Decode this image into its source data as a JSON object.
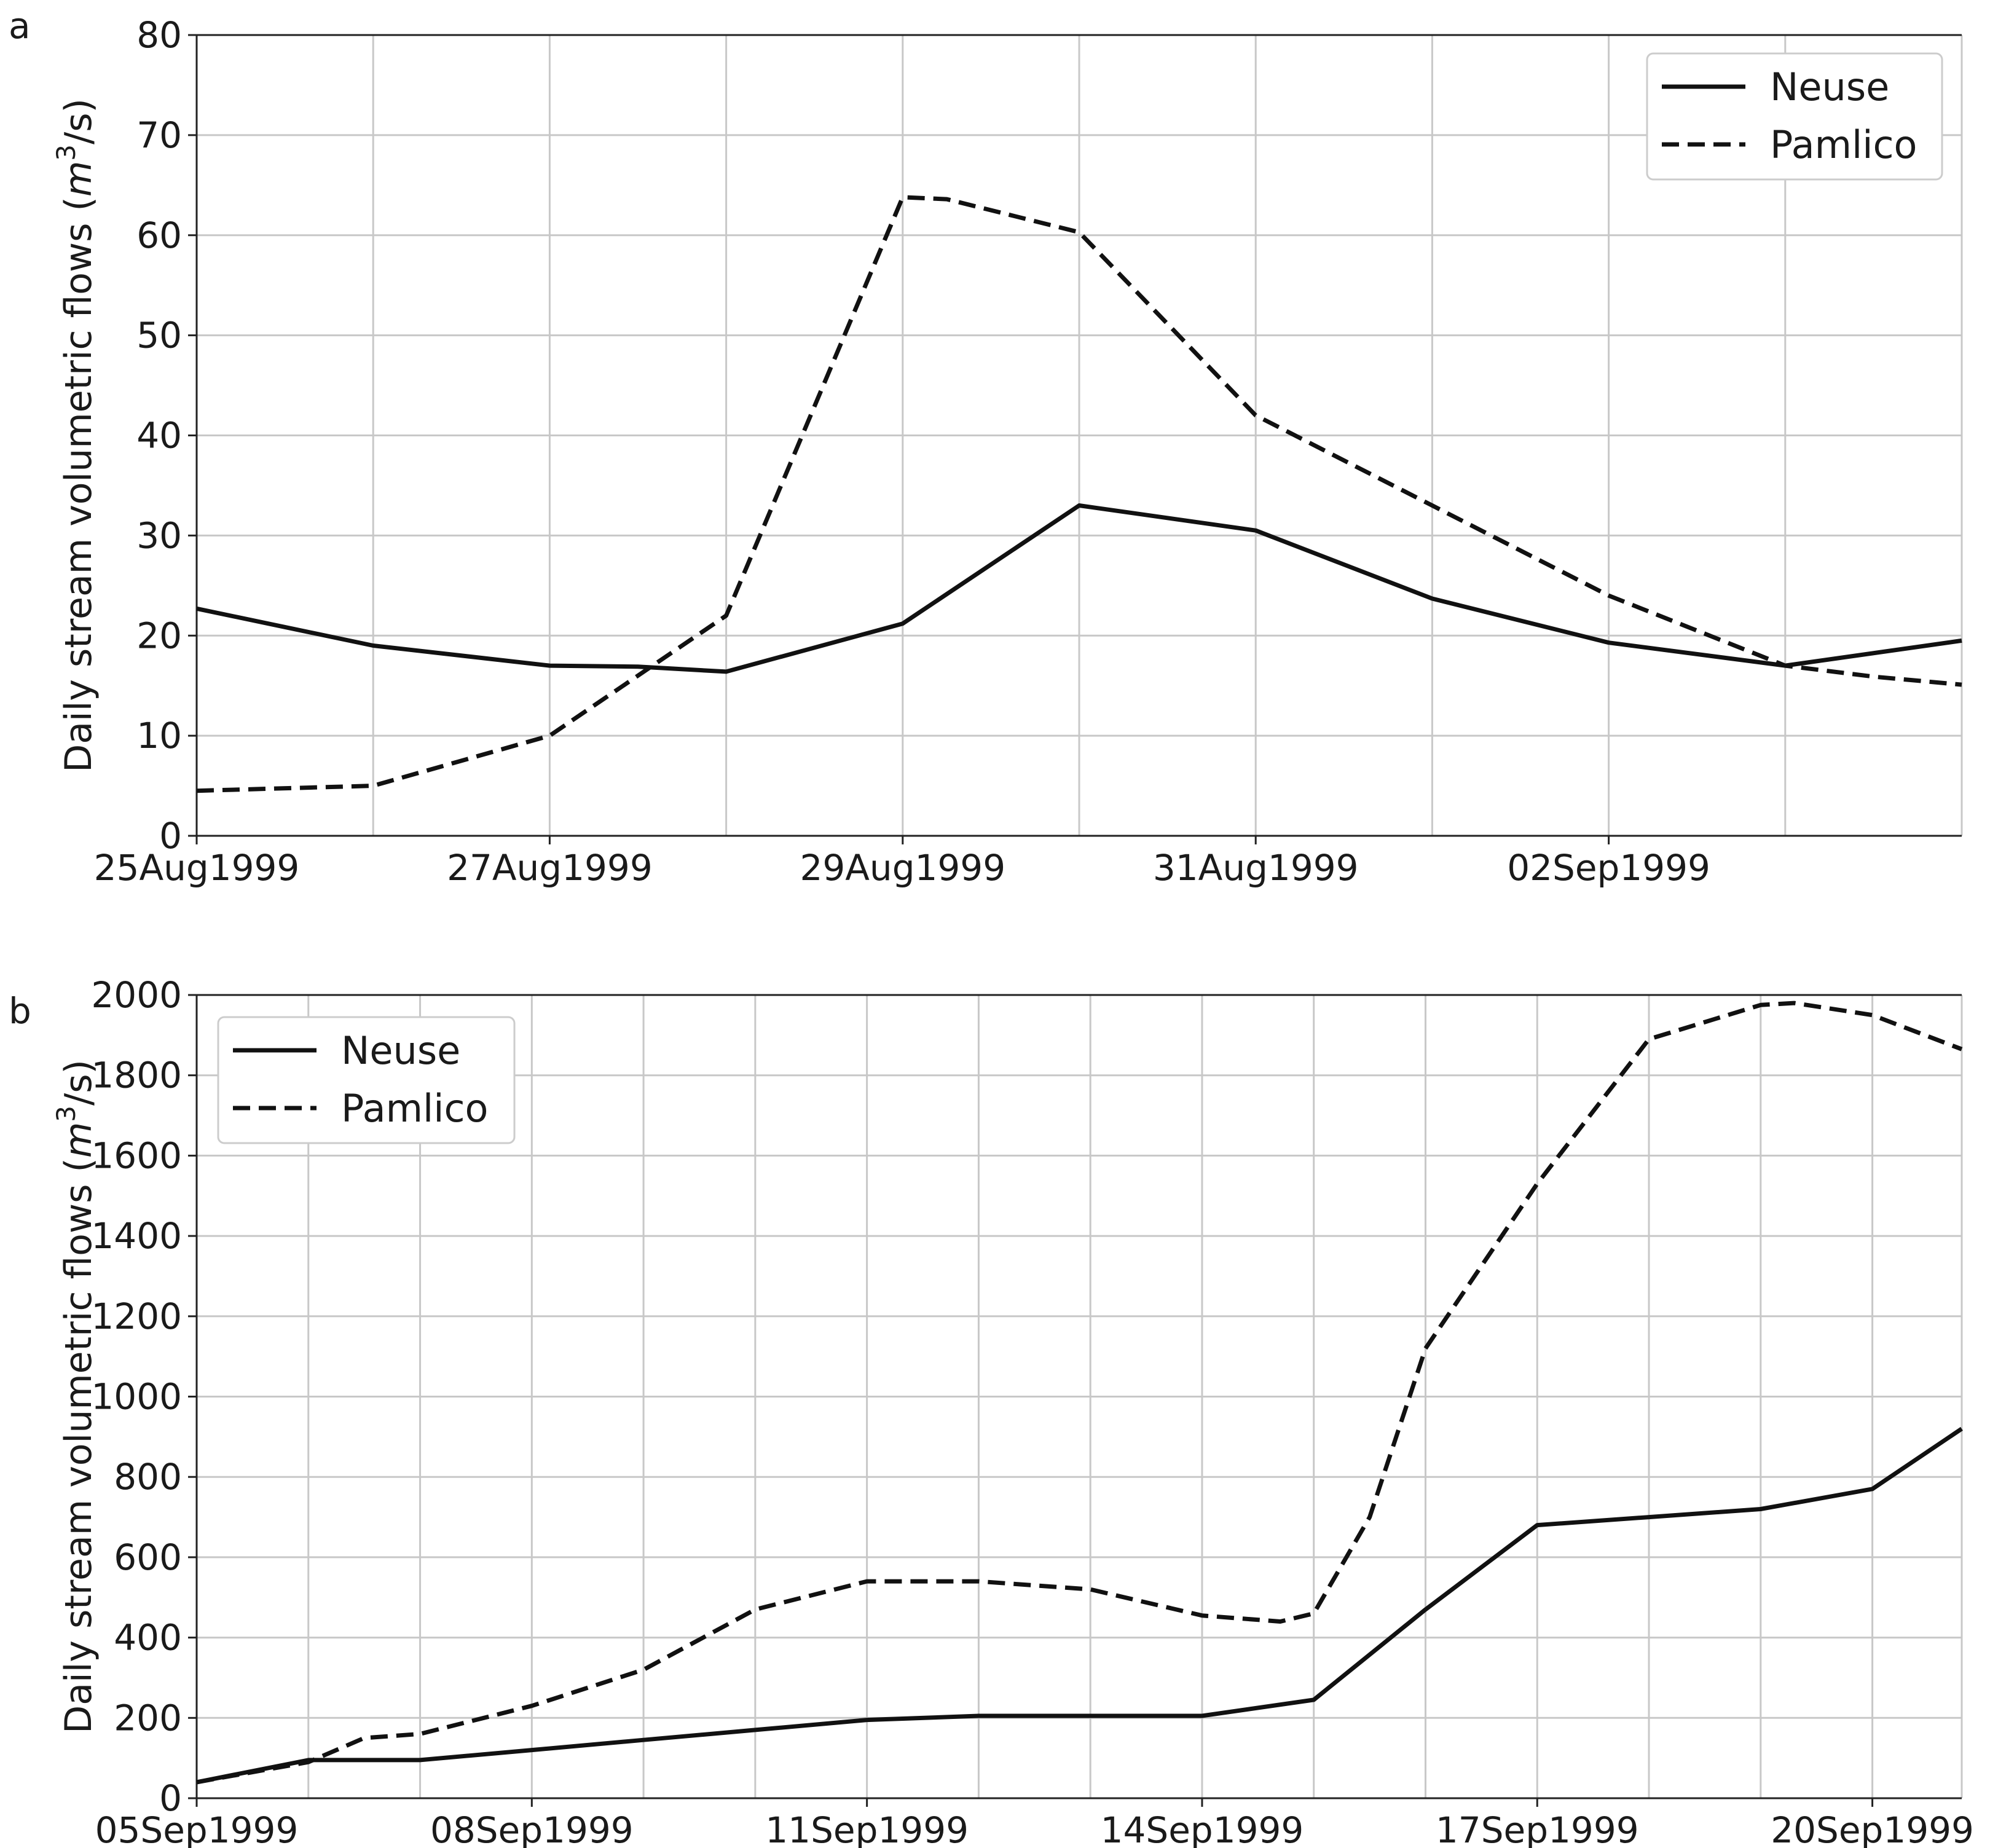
{
  "chart_data": [
    {
      "type": "line",
      "panel_label": "a",
      "xlabel": "",
      "ylabel": "Daily stream volumetric flows (",
      "ylabel_unit_base": "m",
      "ylabel_unit_exp": "3",
      "ylabel_unit_tail": "/s)",
      "x": [
        "25Aug1999",
        "26Aug1999",
        "27Aug1999",
        "28Aug1999",
        "29Aug1999",
        "30Aug1999",
        "31Aug1999",
        "01Sep1999",
        "02Sep1999",
        "03Sep1999",
        "04Sep1999"
      ],
      "x_ticks": [
        "25Aug1999",
        "27Aug1999",
        "29Aug1999",
        "31Aug1999",
        "02Sep1999"
      ],
      "x_grid_dates": [
        "25Aug1999",
        "26Aug1999",
        "27Aug1999",
        "28Aug1999",
        "29Aug1999",
        "30Aug1999",
        "31Aug1999",
        "01Sep1999",
        "02Sep1999",
        "03Sep1999",
        "04Sep1999"
      ],
      "xlim": [
        "25Aug1999",
        "04Sep1999"
      ],
      "ylim": [
        0,
        80
      ],
      "y_ticks": [
        0,
        10,
        20,
        30,
        40,
        50,
        60,
        70,
        80
      ],
      "grid": true,
      "legend_position": "top-right",
      "series": [
        {
          "name": "Neuse",
          "style": "solid",
          "points": [
            [
              "25Aug1999",
              22.7
            ],
            [
              "26Aug1999",
              19.0
            ],
            [
              "27Aug1999",
              17.0
            ],
            [
              "27.5Aug1999",
              16.9
            ],
            [
              "28Aug1999",
              16.4
            ],
            [
              "29Aug1999",
              21.2
            ],
            [
              "30Aug1999",
              33.0
            ],
            [
              "31Aug1999",
              30.5
            ],
            [
              "01Sep1999",
              23.7
            ],
            [
              "02Sep1999",
              19.3
            ],
            [
              "03Sep1999",
              17.0
            ],
            [
              "04Sep1999",
              19.5
            ]
          ]
        },
        {
          "name": "Pamlico",
          "style": "dashed",
          "points": [
            [
              "25Aug1999",
              4.5
            ],
            [
              "26Aug1999",
              5.0
            ],
            [
              "27Aug1999",
              10.0
            ],
            [
              "28Aug1999",
              22.0
            ],
            [
              "29Aug1999",
              63.8
            ],
            [
              "29.25Aug1999",
              63.6
            ],
            [
              "30Aug1999",
              60.3
            ],
            [
              "31Aug1999",
              42.0
            ],
            [
              "01Sep1999",
              33.0
            ],
            [
              "02Sep1999",
              24.0
            ],
            [
              "03Sep1999",
              17.0
            ],
            [
              "03.5Sep1999",
              15.9
            ],
            [
              "04Sep1999",
              15.1
            ]
          ]
        }
      ]
    },
    {
      "type": "line",
      "panel_label": "b",
      "xlabel": "",
      "ylabel": "Daily stream volumetric flows (",
      "ylabel_unit_base": "m",
      "ylabel_unit_exp": "3",
      "ylabel_unit_tail": "/s)",
      "x_ticks": [
        "05Sep1999",
        "08Sep1999",
        "11Sep1999",
        "14Sep1999",
        "17Sep1999",
        "20Sep1999"
      ],
      "x_grid_dates": [
        "05Sep1999",
        "06Sep1999",
        "07Sep1999",
        "08Sep1999",
        "09Sep1999",
        "10Sep1999",
        "11Sep1999",
        "12Sep1999",
        "13Sep1999",
        "14Sep1999",
        "15Sep1999",
        "16Sep1999",
        "17Sep1999",
        "18Sep1999",
        "19Sep1999",
        "20Sep1999",
        "20.8Sep1999"
      ],
      "xlim": [
        "05Sep1999",
        "20.8Sep1999"
      ],
      "ylim": [
        0,
        2000
      ],
      "y_ticks": [
        0,
        200,
        400,
        600,
        800,
        1000,
        1200,
        1400,
        1600,
        1800,
        2000
      ],
      "grid": true,
      "legend_position": "top-left",
      "series": [
        {
          "name": "Neuse",
          "style": "solid",
          "points": [
            [
              "05Sep1999",
              40
            ],
            [
              "06Sep1999",
              95
            ],
            [
              "07Sep1999",
              95
            ],
            [
              "08Sep1999",
              120
            ],
            [
              "09Sep1999",
              145
            ],
            [
              "10Sep1999",
              170
            ],
            [
              "11Sep1999",
              195
            ],
            [
              "12Sep1999",
              205
            ],
            [
              "13Sep1999",
              205
            ],
            [
              "14Sep1999",
              205
            ],
            [
              "15Sep1999",
              245
            ],
            [
              "16Sep1999",
              470
            ],
            [
              "17Sep1999",
              680
            ],
            [
              "18Sep1999",
              700
            ],
            [
              "19Sep1999",
              720
            ],
            [
              "20Sep1999",
              770
            ],
            [
              "20.8Sep1999",
              920
            ]
          ]
        },
        {
          "name": "Pamlico",
          "style": "dashed",
          "points": [
            [
              "05Sep1999",
              40
            ],
            [
              "06Sep1999",
              90
            ],
            [
              "06.5Sep1999",
              150
            ],
            [
              "07Sep1999",
              160
            ],
            [
              "08Sep1999",
              230
            ],
            [
              "09Sep1999",
              320
            ],
            [
              "10Sep1999",
              470
            ],
            [
              "11Sep1999",
              540
            ],
            [
              "12Sep1999",
              540
            ],
            [
              "13Sep1999",
              520
            ],
            [
              "14Sep1999",
              455
            ],
            [
              "14.7Sep1999",
              440
            ],
            [
              "15Sep1999",
              460
            ],
            [
              "15.5Sep1999",
              700
            ],
            [
              "16Sep1999",
              1120
            ],
            [
              "17Sep1999",
              1530
            ],
            [
              "18Sep1999",
              1890
            ],
            [
              "19Sep1999",
              1975
            ],
            [
              "19.3Sep1999",
              1980
            ],
            [
              "20Sep1999",
              1950
            ],
            [
              "20.8Sep1999",
              1865
            ]
          ]
        }
      ]
    }
  ]
}
